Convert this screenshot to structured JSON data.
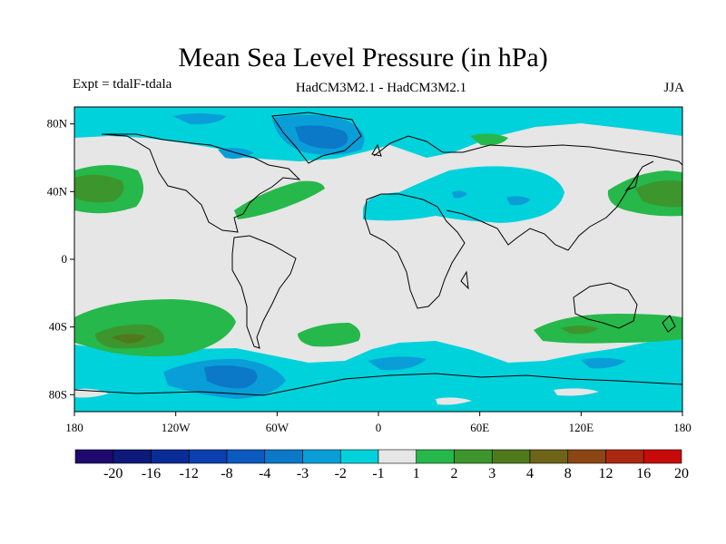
{
  "title": "Mean Sea Level Pressure (in hPa)",
  "subtitle_left": "Expt = tdalF-tdala",
  "subtitle_center": "HadCM3M2.1 - HadCM3M2.1",
  "subtitle_right": "JJA",
  "map": {
    "lat_ticks": [
      "80N",
      "40N",
      "0",
      "40S",
      "80S"
    ],
    "lon_ticks": [
      "180",
      "120W",
      "60W",
      "0",
      "60E",
      "120E",
      "180"
    ]
  },
  "colorbar": {
    "labels": [
      "-20",
      "-16",
      "-12",
      "-8",
      "-4",
      "-3",
      "-2",
      "-1",
      "1",
      "2",
      "3",
      "4",
      "8",
      "12",
      "16",
      "20"
    ],
    "colors": [
      "#1e0a6e",
      "#0d1a7a",
      "#0a2c96",
      "#0a40b0",
      "#0a5ac0",
      "#0c78c8",
      "#0a9ed8",
      "#00d2dc",
      "#e6e6e6",
      "#26b84a",
      "#3c962d",
      "#4f7a1c",
      "#6e6418",
      "#8c4614",
      "#aa280f",
      "#c80a0a"
    ]
  },
  "colors": {
    "neutral": "#e6e6e6",
    "neg1": "#00d2dc",
    "neg2": "#0a9ed8",
    "neg3": "#0c78c8",
    "neg4": "#0a5ac0",
    "pos1": "#26b84a",
    "pos2": "#3c962d",
    "pos3": "#4f7a1c"
  }
}
